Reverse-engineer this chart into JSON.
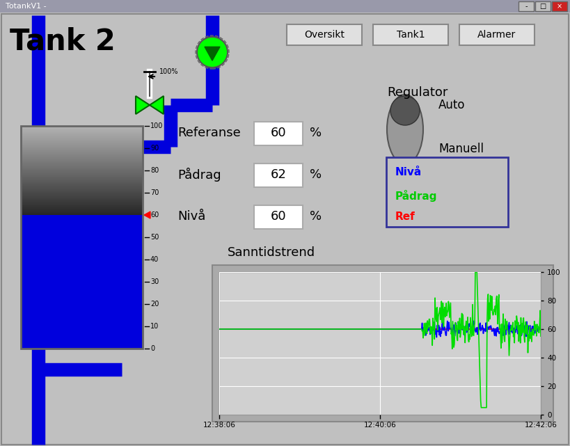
{
  "title": "Tank 2",
  "window_title": "TotankV1 -",
  "bg_color": "#c0c0c0",
  "pipe_color": "#0000dd",
  "buttons": [
    "Oversikt",
    "Tank1",
    "Alarmer"
  ],
  "labels": [
    "Referanse",
    "Pådrag",
    "Nivå"
  ],
  "values": [
    "60",
    "62",
    "60"
  ],
  "regulator_label": "Regulator",
  "auto_label": "Auto",
  "manuell_label": "Manuell",
  "sanntid_label": "Sanntidstrend",
  "legend_items": [
    "Nivå",
    "Pådrag",
    "Ref"
  ],
  "legend_colors": [
    "#0000ff",
    "#00cc00",
    "#ff0000"
  ],
  "trend_yticks": [
    0,
    20,
    40,
    60,
    80,
    100
  ],
  "trend_xticks": [
    "12:38:06",
    "12:40:06",
    "12:42:06"
  ]
}
